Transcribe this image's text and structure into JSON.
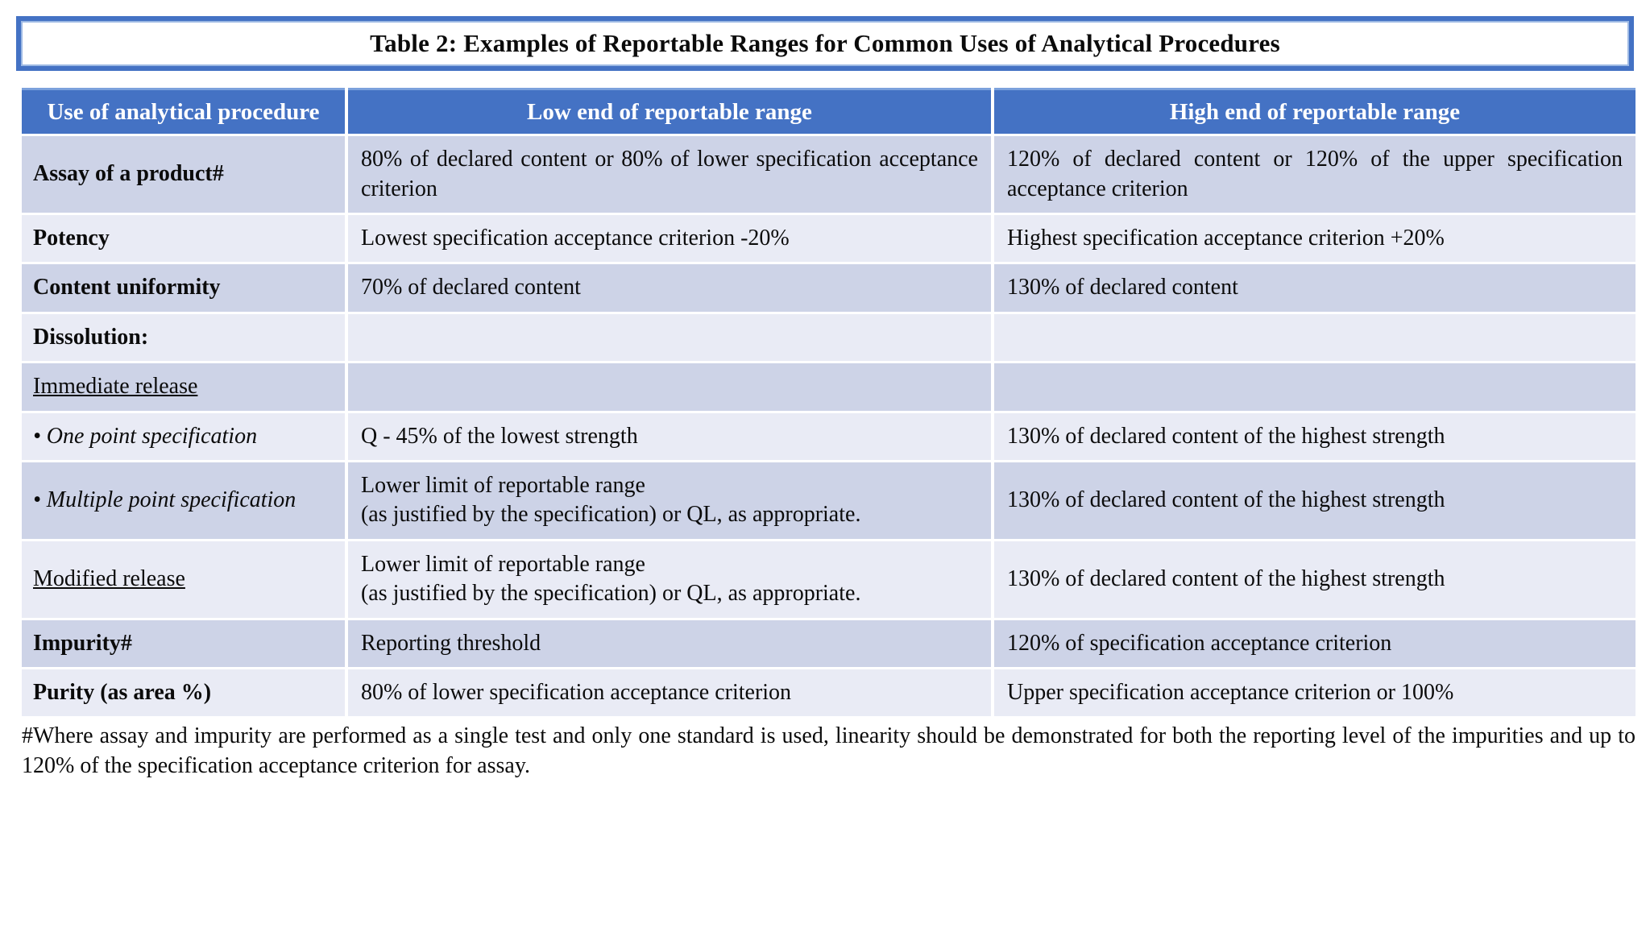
{
  "title": {
    "text": "Table 2: Examples of Reportable Ranges for Common Uses of Analytical Procedures"
  },
  "table": {
    "headers": [
      "Use of analytical procedure",
      "Low end of reportable range",
      "High end of reportable range"
    ],
    "rows": [
      {
        "use": "Assay of a product#",
        "low": "80% of declared content or 80% of lower specification acceptance criterion",
        "high": "120% of declared content or 120% of the upper specification acceptance criterion"
      },
      {
        "use": "Potency",
        "low": "Lowest specification acceptance criterion -20%",
        "high": "Highest specification acceptance criterion +20%"
      },
      {
        "use": "Content uniformity",
        "low": "70% of declared content",
        "high": "130% of declared content"
      },
      {
        "use": "Dissolution:",
        "low": "",
        "high": ""
      },
      {
        "use": "Immediate release",
        "low": "",
        "high": ""
      },
      {
        "use": "• One point specification",
        "low": "Q - 45% of the lowest strength",
        "high": "130% of declared content of the highest strength"
      },
      {
        "use": "• Multiple point specification",
        "low": "Lower limit of reportable range\n(as justified by the specification) or QL, as appropriate.",
        "high": "130% of declared content of the highest strength"
      },
      {
        "use": "Modified release",
        "low": "Lower limit of reportable range\n(as justified by the specification) or QL, as appropriate.",
        "high": "130% of declared content of the highest strength"
      },
      {
        "use": "Impurity#",
        "low": "Reporting threshold",
        "high": "120% of specification acceptance criterion"
      },
      {
        "use": "Purity (as area %)",
        "low": "80% of lower specification acceptance criterion",
        "high": "Upper specification acceptance criterion or 100%"
      }
    ]
  },
  "footnote": {
    "text": "#Where assay and impurity are performed as a single test and only one standard is used, linearity should be demonstrated for both the reporting level of the impurities and up to 120% of the specification acceptance criterion for assay."
  },
  "colors": {
    "header_blue": "#4472C4",
    "row_dark": "#CDD3E7",
    "row_light": "#E9EBF5",
    "frame_blue": "#4472C4"
  }
}
